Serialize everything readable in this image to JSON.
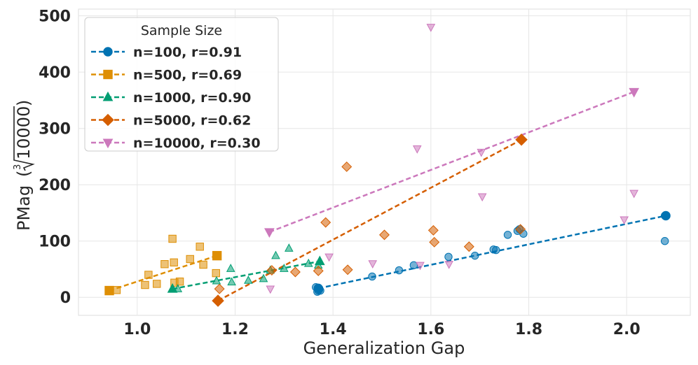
{
  "chart_data": {
    "type": "scatter",
    "xlabel": "Generalization Gap",
    "ylabel": "PMag",
    "ylabel_radical": {
      "index": "3",
      "radicand": "10000"
    },
    "xlim": [
      0.88,
      2.13
    ],
    "ylim": [
      -32,
      512
    ],
    "xticks": [
      1.0,
      1.2,
      1.4,
      1.6,
      1.8,
      2.0
    ],
    "xtick_labels": [
      "1.0",
      "1.2",
      "1.4",
      "1.6",
      "1.8",
      "2.0"
    ],
    "yticks": [
      0,
      100,
      200,
      300,
      400,
      500
    ],
    "ytick_labels": [
      "0",
      "100",
      "200",
      "300",
      "400",
      "500"
    ],
    "grid": true,
    "legend": {
      "title": "Sample Size",
      "position": "top-left"
    },
    "series": [
      {
        "name": "n=100, r=0.91",
        "color": "#0173b2",
        "marker": "circle",
        "fit_x": [
          1.37,
          2.08
        ],
        "fit_y": [
          16,
          145
        ],
        "points": [
          [
            1.365,
            18
          ],
          [
            1.368,
            10
          ],
          [
            1.37,
            12
          ],
          [
            1.372,
            14
          ],
          [
            1.374,
            12
          ],
          [
            1.48,
            37
          ],
          [
            1.535,
            48
          ],
          [
            1.565,
            57
          ],
          [
            1.636,
            72
          ],
          [
            1.69,
            74
          ],
          [
            1.728,
            85
          ],
          [
            1.733,
            84
          ],
          [
            1.757,
            111
          ],
          [
            1.777,
            118
          ],
          [
            1.781,
            121
          ],
          [
            1.789,
            113
          ],
          [
            2.078,
            100
          ],
          [
            2.078,
            145
          ]
        ]
      },
      {
        "name": "n=500, r=0.69",
        "color": "#de8f05",
        "marker": "square",
        "fit_x": [
          0.943,
          1.163
        ],
        "fit_y": [
          12,
          74
        ],
        "points": [
          [
            0.943,
            12
          ],
          [
            0.958,
            13
          ],
          [
            1.016,
            22
          ],
          [
            1.023,
            40
          ],
          [
            1.04,
            24
          ],
          [
            1.056,
            59
          ],
          [
            1.072,
            104
          ],
          [
            1.075,
            62
          ],
          [
            1.076,
            26
          ],
          [
            1.087,
            28
          ],
          [
            1.108,
            68
          ],
          [
            1.128,
            90
          ],
          [
            1.135,
            58
          ],
          [
            1.161,
            43
          ],
          [
            1.163,
            74
          ]
        ]
      },
      {
        "name": "n=1000, r=0.90",
        "color": "#029e73",
        "marker": "triangle",
        "fit_x": [
          1.072,
          1.373
        ],
        "fit_y": [
          15,
          64
        ],
        "points": [
          [
            1.072,
            15
          ],
          [
            1.083,
            15
          ],
          [
            1.162,
            29
          ],
          [
            1.191,
            51
          ],
          [
            1.193,
            27
          ],
          [
            1.227,
            30
          ],
          [
            1.258,
            33
          ],
          [
            1.272,
            48
          ],
          [
            1.283,
            74
          ],
          [
            1.3,
            51
          ],
          [
            1.31,
            87
          ],
          [
            1.35,
            60
          ],
          [
            1.37,
            57
          ],
          [
            1.373,
            64
          ]
        ]
      },
      {
        "name": "n=5000, r=0.62",
        "color": "#d55e00",
        "marker": "diamond",
        "fit_x": [
          1.165,
          1.785
        ],
        "fit_y": [
          -6,
          280
        ],
        "points": [
          [
            1.165,
            -6
          ],
          [
            1.168,
            15
          ],
          [
            1.275,
            48
          ],
          [
            1.323,
            45
          ],
          [
            1.37,
            47
          ],
          [
            1.385,
            133
          ],
          [
            1.428,
            232
          ],
          [
            1.43,
            49
          ],
          [
            1.505,
            111
          ],
          [
            1.605,
            119
          ],
          [
            1.607,
            98
          ],
          [
            1.678,
            90
          ],
          [
            1.783,
            121
          ],
          [
            1.785,
            280
          ]
        ]
      },
      {
        "name": "n=10000, r=0.30",
        "color": "#cc78bc",
        "marker": "triangle-down",
        "fit_x": [
          1.27,
          2.015
        ],
        "fit_y": [
          116,
          365
        ],
        "points": [
          [
            1.27,
            116
          ],
          [
            1.272,
            15
          ],
          [
            1.392,
            72
          ],
          [
            1.481,
            60
          ],
          [
            1.572,
            264
          ],
          [
            1.578,
            57
          ],
          [
            1.6,
            480
          ],
          [
            1.637,
            59
          ],
          [
            1.703,
            258
          ],
          [
            1.705,
            179
          ],
          [
            1.995,
            138
          ],
          [
            2.015,
            365
          ],
          [
            2.015,
            185
          ]
        ]
      }
    ]
  }
}
